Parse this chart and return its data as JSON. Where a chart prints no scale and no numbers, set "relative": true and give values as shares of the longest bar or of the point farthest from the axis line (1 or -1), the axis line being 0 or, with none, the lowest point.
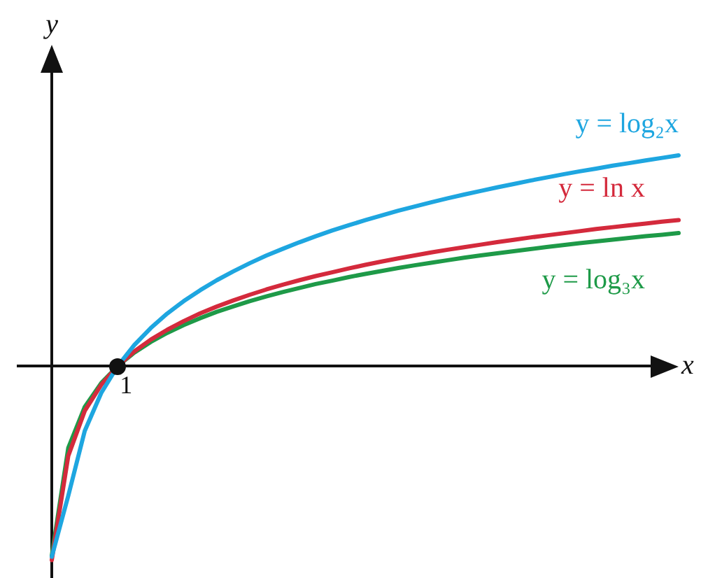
{
  "chart_data": {
    "type": "line",
    "relative": true,
    "xlabel": "x",
    "ylabel": "y",
    "annotations": [
      {
        "text": "1",
        "y": 0
      }
    ],
    "marker": "none",
    "line_style": "solid",
    "categories": [
      null,
      null,
      null,
      null,
      null,
      null,
      null,
      null,
      null,
      null,
      null,
      null,
      null,
      null,
      null,
      null,
      null,
      null,
      null,
      null,
      null,
      null,
      null,
      null,
      null,
      null,
      null,
      null,
      null,
      null,
      null,
      null,
      null,
      null,
      null,
      null,
      null,
      null,
      null
    ],
    "series": [
      {
        "name": "y = log₂x",
        "color": "#1ea6e0",
        "values": [
          -0.906,
          -0.616,
          -0.308,
          -0.128,
          0,
          0.099,
          0.18,
          0.249,
          0.308,
          0.36,
          0.407,
          0.449,
          0.488,
          0.524,
          0.556,
          0.587,
          0.616,
          0.643,
          0.668,
          0.692,
          0.715,
          0.737,
          0.757,
          0.777,
          0.796,
          0.814,
          0.831,
          0.848,
          0.864,
          0.88,
          0.895,
          0.91,
          0.924,
          0.937,
          0.951,
          0.963,
          0.976,
          0.988,
          1
        ]
      },
      {
        "name": "y = ln x",
        "color": "#d42a3c",
        "values": [
          -0.922,
          -0.427,
          -0.213,
          -0.089,
          0,
          0.069,
          0.125,
          0.172,
          0.213,
          0.25,
          0.282,
          0.311,
          0.338,
          0.363,
          0.386,
          0.407,
          0.427,
          0.445,
          0.463,
          0.48,
          0.496,
          0.511,
          0.525,
          0.539,
          0.552,
          0.564,
          0.576,
          0.588,
          0.599,
          0.61,
          0.62,
          0.63,
          0.64,
          0.65,
          0.659,
          0.668,
          0.676,
          0.685,
          0.693
        ]
      },
      {
        "name": "y = log₃x",
        "color": "#1e9a48",
        "values": [
          -0.902,
          -0.389,
          -0.194,
          -0.081,
          0,
          0.063,
          0.114,
          0.157,
          0.194,
          0.227,
          0.257,
          0.283,
          0.308,
          0.33,
          0.351,
          0.37,
          0.389,
          0.405,
          0.422,
          0.437,
          0.451,
          0.465,
          0.478,
          0.49,
          0.502,
          0.514,
          0.525,
          0.535,
          0.545,
          0.555,
          0.565,
          0.574,
          0.583,
          0.591,
          0.6,
          0.608,
          0.616,
          0.623,
          0.631
        ]
      }
    ]
  }
}
